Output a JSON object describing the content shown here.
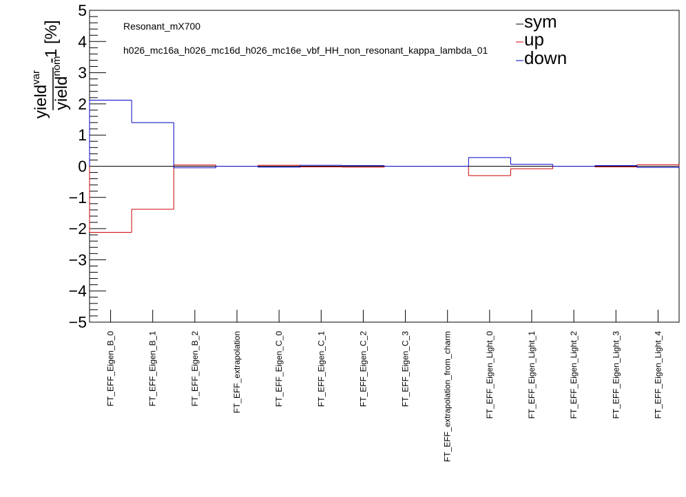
{
  "chart_data": {
    "type": "histogram-step",
    "annotations": [
      "Resonant_mX700",
      "h026_mc16a_h026_mc16d_h026_mc16e_vbf_HH_non_resonant_kappa_lambda_01"
    ],
    "ylabel": {
      "main": "yield",
      "sup_num": "var",
      "sup_den": "nom",
      "suffix": "-1 [%]"
    },
    "ylim": [
      -5,
      5
    ],
    "yticks": [
      "5",
      "4",
      "3",
      "2",
      "1",
      "0",
      "−1",
      "−2",
      "−3",
      "−4",
      "−5"
    ],
    "categories": [
      "FT_EFF_Eigen_B_0",
      "FT_EFF_Eigen_B_1",
      "FT_EFF_Eigen_B_2",
      "FT_EFF_extrapolation",
      "FT_EFF_Eigen_C_0",
      "FT_EFF_Eigen_C_1",
      "FT_EFF_Eigen_C_2",
      "FT_EFF_Eigen_C_3",
      "FT_EFF_extrapolation_from_charm",
      "FT_EFF_Eigen_Light_0",
      "FT_EFF_Eigen_Light_1",
      "FT_EFF_Eigen_Light_2",
      "FT_EFF_Eigen_Light_3",
      "FT_EFF_Eigen_Light_4"
    ],
    "series": [
      {
        "name": "sym",
        "color": "#000000",
        "values": [
          0,
          0,
          0,
          0,
          0,
          0,
          0,
          0,
          0,
          0,
          0,
          0,
          0,
          0
        ]
      },
      {
        "name": "up",
        "color": "#cc0000",
        "values": [
          -2.12,
          -1.38,
          0.04,
          0.0,
          0.03,
          -0.02,
          -0.03,
          0.0,
          0.0,
          -0.3,
          -0.08,
          0.0,
          -0.02,
          0.05
        ]
      },
      {
        "name": "down",
        "color": "#0000cc",
        "values": [
          2.12,
          1.4,
          -0.05,
          0.0,
          -0.03,
          0.03,
          0.02,
          0.0,
          0.0,
          0.28,
          0.06,
          0.0,
          0.02,
          -0.04
        ]
      }
    ],
    "reference_line": {
      "y": 0,
      "style": "dashed"
    },
    "legend_position": "top-right",
    "grid": false
  }
}
